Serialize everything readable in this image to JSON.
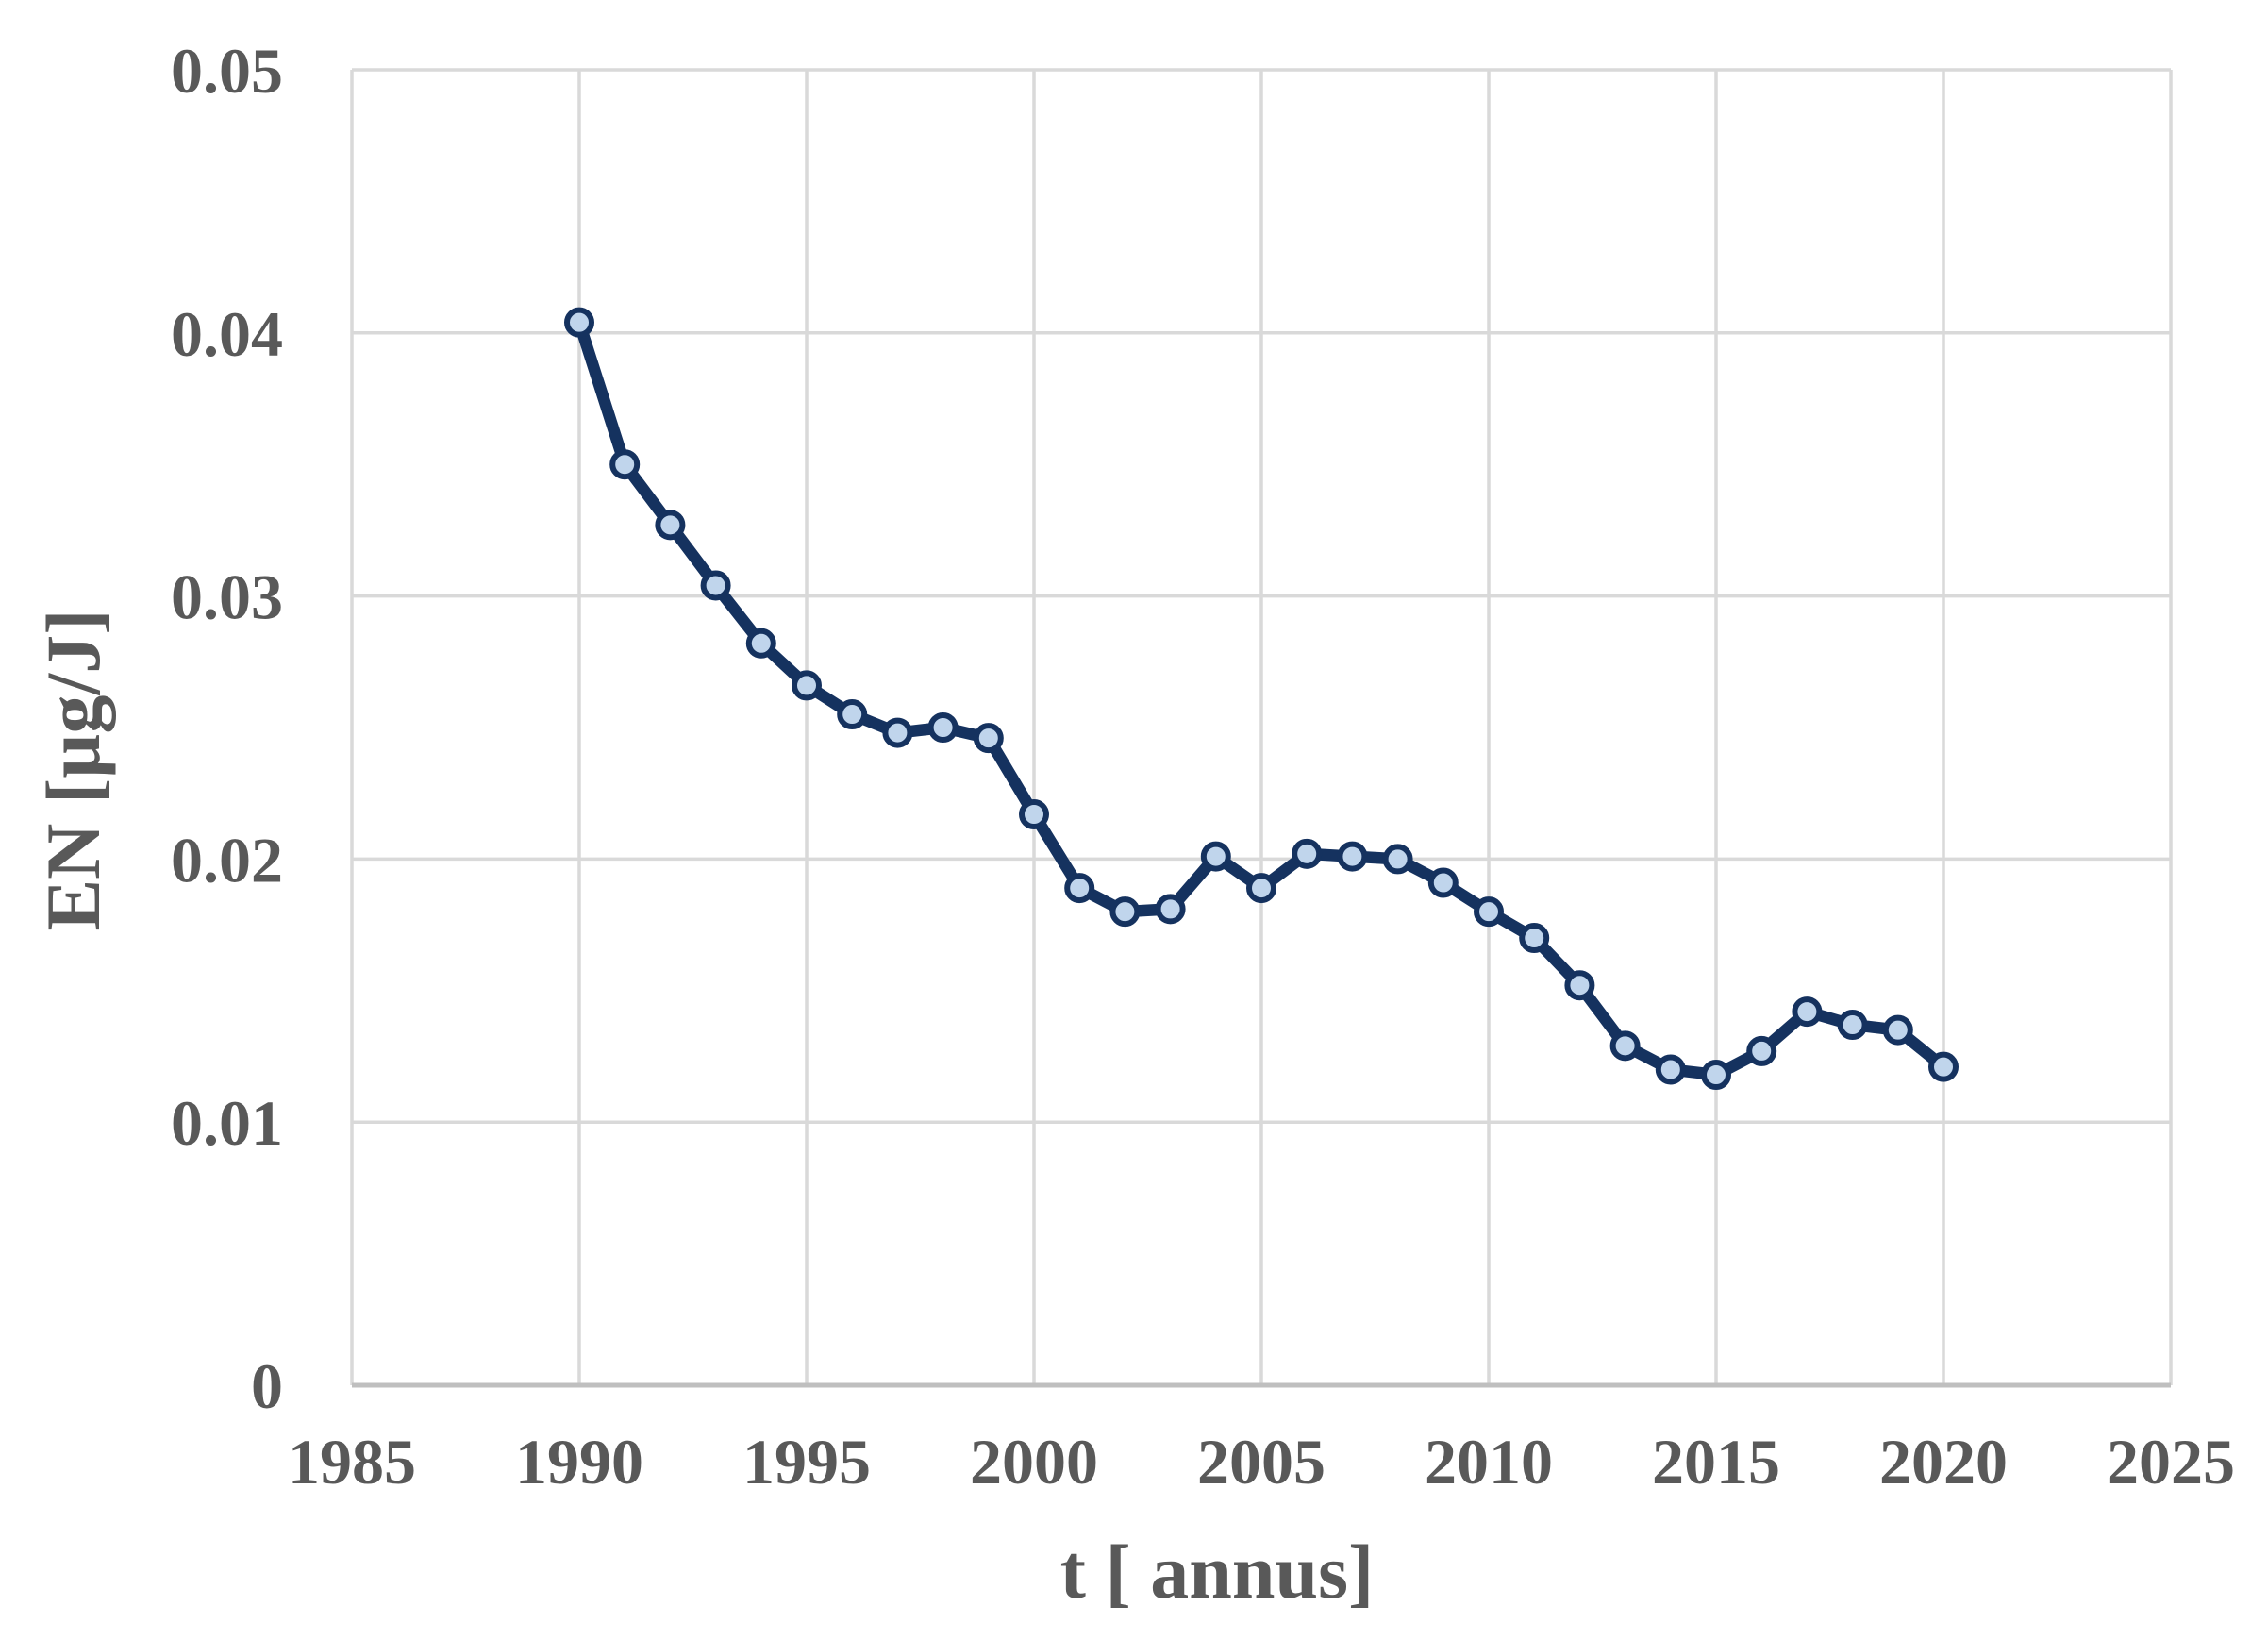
{
  "figure": {
    "background": "#FFFFFF",
    "has_title": false,
    "has_legend": false
  },
  "chart_data": {
    "type": "line",
    "title": "",
    "xlabel": "t [ annus]",
    "ylabel": "EN [µg/J]",
    "x": [
      1990,
      1991,
      1992,
      1993,
      1994,
      1995,
      1996,
      1997,
      1998,
      1999,
      2000,
      2001,
      2002,
      2003,
      2004,
      2005,
      2006,
      2007,
      2008,
      2009,
      2010,
      2011,
      2012,
      2013,
      2014,
      2015,
      2016,
      2017,
      2018,
      2019,
      2020
    ],
    "series": [
      {
        "name": "EN",
        "values": [
          0.0404,
          0.035,
          0.0327,
          0.0304,
          0.0282,
          0.0266,
          0.0255,
          0.0248,
          0.025,
          0.0246,
          0.0217,
          0.0189,
          0.018,
          0.0181,
          0.0201,
          0.0189,
          0.0202,
          0.0201,
          0.02,
          0.0191,
          0.018,
          0.017,
          0.0152,
          0.0129,
          0.012,
          0.0118,
          0.0127,
          0.0142,
          0.0137,
          0.0135,
          0.0121
        ]
      }
    ],
    "xlim": [
      1985,
      2025
    ],
    "ylim": [
      0,
      0.05
    ],
    "xticks": [
      "1985",
      "1990",
      "1995",
      "2000",
      "2005",
      "2010",
      "2015",
      "2020",
      "2025"
    ],
    "yticks": [
      "0",
      "0.01",
      "0.02",
      "0.03",
      "0.04",
      "0.05"
    ],
    "grid": true,
    "legend_position": "none",
    "marker": "circle",
    "colors": {
      "line": "#15325F",
      "marker_fill": "#C0D5EC",
      "marker_stroke": "#15325F",
      "grid": "#D9D9D9",
      "axis": "#BFBFBF",
      "text": "#595959"
    }
  }
}
